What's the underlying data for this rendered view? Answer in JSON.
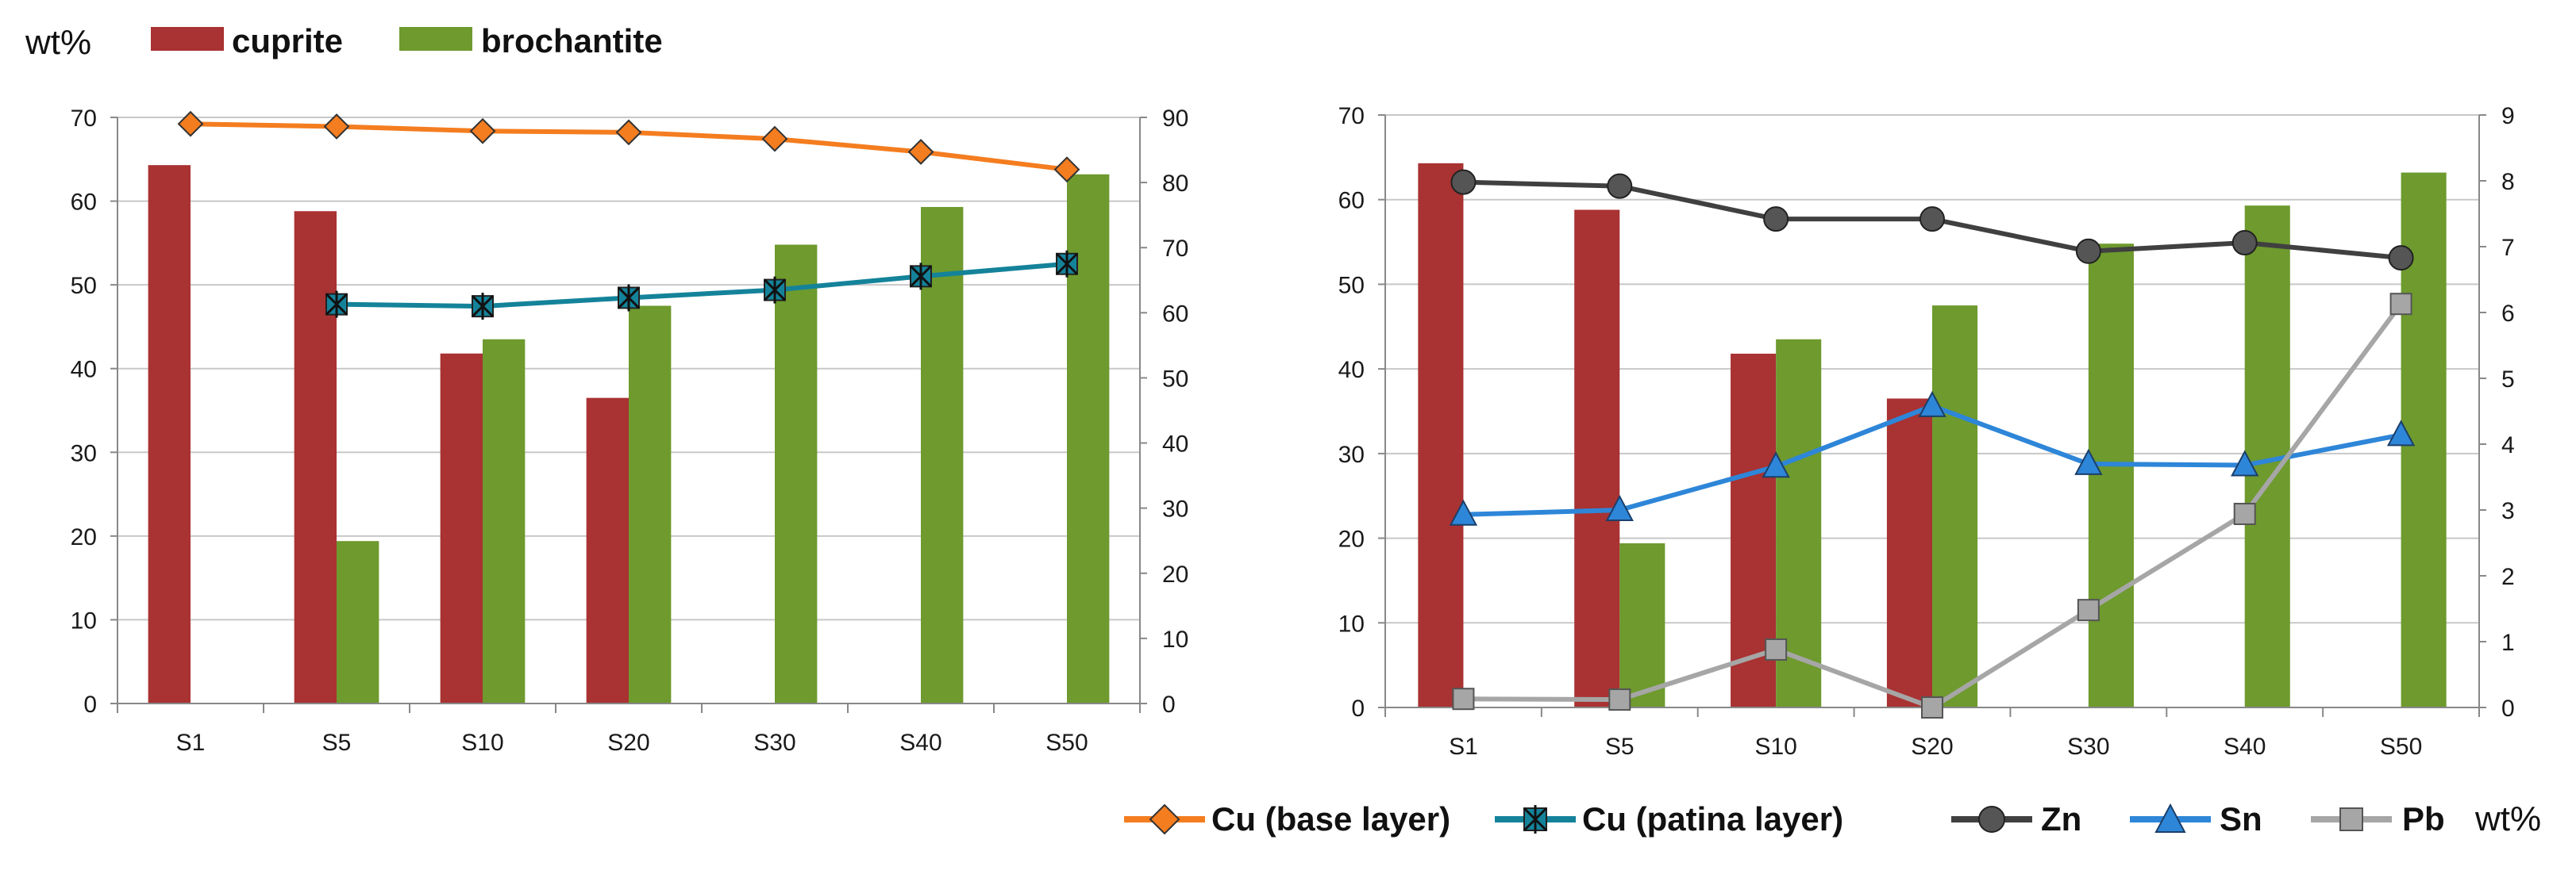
{
  "figure": {
    "top_legend": {
      "unit": "wt%",
      "items": [
        {
          "label": "cuprite",
          "color": "#a93232"
        },
        {
          "label": "brochantite",
          "color": "#6e9a2e"
        }
      ]
    },
    "bottom_legend": {
      "unit": "wt%",
      "items": [
        {
          "label": "Cu (base layer)",
          "color": "#f47d20",
          "marker": "diamond"
        },
        {
          "label": "Cu (patina layer)",
          "color": "#14839a",
          "marker": "asterisk-x"
        },
        {
          "label": "Zn",
          "color": "#404040",
          "marker": "circle"
        },
        {
          "label": "Sn",
          "color": "#2e86d8",
          "marker": "triangle"
        },
        {
          "label": "Pb",
          "color": "#a6a6a6",
          "marker": "square"
        }
      ]
    }
  },
  "chart_data": [
    {
      "type": "bar+line",
      "title": "",
      "categories": [
        "S1",
        "S5",
        "S10",
        "S20",
        "S30",
        "S40",
        "S50"
      ],
      "y_left": {
        "range": [
          0,
          70
        ],
        "ticks": [
          0,
          10,
          20,
          30,
          40,
          50,
          60,
          70
        ],
        "label": "wt%"
      },
      "y_right": {
        "range": [
          0,
          90
        ],
        "ticks": [
          0,
          10,
          20,
          30,
          40,
          50,
          60,
          70,
          80,
          90
        ]
      },
      "grid": true,
      "bars": [
        {
          "name": "cuprite",
          "color": "#a93232",
          "values": [
            64.3,
            58.8,
            41.8,
            36.5,
            null,
            null,
            null
          ]
        },
        {
          "name": "brochantite",
          "color": "#6e9a2e",
          "values": [
            null,
            19.4,
            43.5,
            47.5,
            54.8,
            59.3,
            63.2
          ]
        }
      ],
      "lines": [
        {
          "name": "Cu (base layer)",
          "axis": "right",
          "color": "#f47d20",
          "marker": "diamond",
          "values": [
            89.0,
            88.6,
            87.9,
            87.7,
            86.7,
            84.7,
            82.0
          ]
        },
        {
          "name": "Cu (patina layer)",
          "axis": "right",
          "color": "#14839a",
          "marker": "asterisk-x",
          "values": [
            null,
            61.3,
            61.0,
            62.3,
            63.5,
            65.6,
            67.5
          ]
        }
      ]
    },
    {
      "type": "bar+line",
      "title": "",
      "categories": [
        "S1",
        "S5",
        "S10",
        "S20",
        "S30",
        "S40",
        "S50"
      ],
      "y_left": {
        "range": [
          0,
          70
        ],
        "ticks": [
          0,
          10,
          20,
          30,
          40,
          50,
          60,
          70
        ]
      },
      "y_right": {
        "range": [
          0,
          9
        ],
        "ticks": [
          0,
          1,
          2,
          3,
          4,
          5,
          6,
          7,
          8,
          9
        ],
        "label": "wt%"
      },
      "grid": true,
      "bars": [
        {
          "name": "cuprite",
          "color": "#a93232",
          "values": [
            64.3,
            58.8,
            41.8,
            36.5,
            null,
            null,
            null
          ]
        },
        {
          "name": "brochantite",
          "color": "#6e9a2e",
          "values": [
            null,
            19.4,
            43.5,
            47.5,
            54.8,
            59.3,
            63.2
          ]
        }
      ],
      "lines": [
        {
          "name": "Zn",
          "axis": "right",
          "color": "#404040",
          "marker": "circle",
          "values": [
            7.98,
            7.92,
            7.42,
            7.42,
            6.93,
            7.06,
            6.83
          ]
        },
        {
          "name": "Sn",
          "axis": "right",
          "color": "#2e86d8",
          "marker": "triangle",
          "values": [
            2.93,
            3.0,
            3.66,
            4.58,
            3.7,
            3.68,
            4.14
          ]
        },
        {
          "name": "Pb",
          "axis": "right",
          "color": "#a6a6a6",
          "marker": "square",
          "values": [
            0.13,
            0.12,
            0.88,
            0.0,
            1.48,
            2.94,
            6.13
          ]
        }
      ]
    }
  ]
}
